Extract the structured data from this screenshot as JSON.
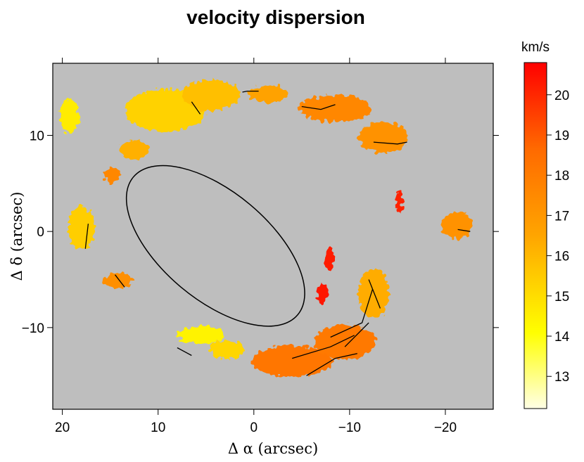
{
  "chart_data": {
    "type": "heatmap",
    "title": "velocity dispersion",
    "xlabel": "Δ α (arcsec)",
    "ylabel": "Δ δ (arcsec)",
    "xlim": [
      21,
      -25
    ],
    "ylim": [
      -18.5,
      17.5
    ],
    "x_ticks": [
      20,
      10,
      0,
      -10,
      -20
    ],
    "x_tick_labels": [
      "20",
      "10",
      "0",
      "−10",
      "−20"
    ],
    "y_ticks": [
      10,
      0,
      -10
    ],
    "y_tick_labels": [
      "10",
      "0",
      "−10"
    ],
    "background_color": "#bebebe",
    "colorbar": {
      "unit_label": "km/s",
      "range": [
        12.2,
        20.8
      ],
      "ticks": [
        13,
        14,
        15,
        16,
        17,
        18,
        19,
        20
      ],
      "tick_labels": [
        "13",
        "14",
        "15",
        "16",
        "17",
        "18",
        "19",
        "20"
      ],
      "colors": [
        "#ffffe6",
        "#ffff00",
        "#ffa500",
        "#ff6a00",
        "#ff0000"
      ]
    },
    "ellipse": {
      "center": [
        4.0,
        -1.5
      ],
      "semi_major": 11.2,
      "semi_minor": 5.6,
      "angle_deg": -40
    },
    "regions": [
      {
        "name": "top-arc-yellow",
        "cx": 9.2,
        "cy": 12.6,
        "rx": 4.2,
        "ry": 2.2,
        "value": 15.3
      },
      {
        "name": "top-arc-mid",
        "cx": 4.5,
        "cy": 14.2,
        "rx": 3.0,
        "ry": 1.6,
        "value": 15.8
      },
      {
        "name": "top-arc-orange",
        "cx": -1.5,
        "cy": 14.3,
        "rx": 2.0,
        "ry": 0.9,
        "value": 16.6
      },
      {
        "name": "top-right-arc",
        "cx": -8.5,
        "cy": 12.8,
        "rx": 3.8,
        "ry": 1.4,
        "value": 17.6
      },
      {
        "name": "top-right-arc-end",
        "cx": -13.5,
        "cy": 9.8,
        "rx": 2.6,
        "ry": 1.6,
        "value": 17.2
      },
      {
        "name": "left-top-clump",
        "cx": 19.3,
        "cy": 12.0,
        "rx": 1.0,
        "ry": 1.8,
        "value": 14.6
      },
      {
        "name": "left-arc-top",
        "cx": 12.5,
        "cy": 8.5,
        "rx": 1.6,
        "ry": 1.0,
        "value": 16.2
      },
      {
        "name": "left-mid-clump",
        "cx": 18.0,
        "cy": 0.4,
        "rx": 1.4,
        "ry": 2.2,
        "value": 15.4
      },
      {
        "name": "left-lower-clump",
        "cx": 14.2,
        "cy": -5.1,
        "rx": 1.5,
        "ry": 0.8,
        "value": 17.3
      },
      {
        "name": "left-patch",
        "cx": 14.8,
        "cy": 5.8,
        "rx": 0.9,
        "ry": 0.8,
        "value": 17.6
      },
      {
        "name": "bottom-left-yellow",
        "cx": 5.5,
        "cy": -10.8,
        "rx": 2.5,
        "ry": 0.9,
        "value": 14.4
      },
      {
        "name": "bottom-left-arc",
        "cx": 2.8,
        "cy": -12.3,
        "rx": 1.8,
        "ry": 1.0,
        "value": 15.2
      },
      {
        "name": "bottom-arc",
        "cx": -4.0,
        "cy": -13.5,
        "rx": 4.2,
        "ry": 1.6,
        "value": 18.2
      },
      {
        "name": "bottom-right-arc-inner",
        "cx": -9.5,
        "cy": -11.5,
        "rx": 3.2,
        "ry": 1.8,
        "value": 18.1
      },
      {
        "name": "bottom-right-arc-upper",
        "cx": -12.5,
        "cy": -6.5,
        "rx": 1.6,
        "ry": 2.6,
        "value": 16.3
      },
      {
        "name": "right-clump",
        "cx": -21.2,
        "cy": 0.6,
        "rx": 1.6,
        "ry": 1.4,
        "value": 17.2
      },
      {
        "name": "inner-red-top",
        "cx": -7.9,
        "cy": -2.9,
        "rx": 0.5,
        "ry": 1.2,
        "value": 20.2
      },
      {
        "name": "inner-red-bottom",
        "cx": -7.2,
        "cy": -6.5,
        "rx": 0.6,
        "ry": 1.0,
        "value": 20.3
      },
      {
        "name": "right-red-spot",
        "cx": -15.2,
        "cy": 3.1,
        "rx": 0.4,
        "ry": 1.2,
        "value": 20.1
      }
    ],
    "contours": [
      [
        [
          17.3,
          0.8
        ],
        [
          17.6,
          -1.8
        ]
      ],
      [
        [
          14.5,
          -4.5
        ],
        [
          13.5,
          -5.8
        ]
      ],
      [
        [
          8.0,
          -12.1
        ],
        [
          6.5,
          -12.9
        ]
      ],
      [
        [
          -12.0,
          -5.0
        ],
        [
          -13.2,
          -8.0
        ]
      ],
      [
        [
          -8.0,
          -11.0
        ],
        [
          -11.3,
          -9.5
        ],
        [
          -12.4,
          -6.0
        ]
      ],
      [
        [
          -9.5,
          -12.0
        ],
        [
          -12.0,
          -9.5
        ]
      ],
      [
        [
          -4.0,
          -13.2
        ],
        [
          -8.0,
          -12.0
        ],
        [
          -10.5,
          -10.8
        ]
      ],
      [
        [
          -5.5,
          -15.0
        ],
        [
          -8.5,
          -13.2
        ],
        [
          -10.8,
          -12.7
        ]
      ],
      [
        [
          -5.0,
          13.0
        ],
        [
          -7.0,
          12.7
        ],
        [
          -8.5,
          13.2
        ]
      ],
      [
        [
          -12.5,
          9.3
        ],
        [
          -15.0,
          9.1
        ],
        [
          -16.0,
          9.3
        ]
      ],
      [
        [
          6.5,
          13.5
        ],
        [
          5.6,
          12.2
        ]
      ],
      [
        [
          -21.3,
          0.2
        ],
        [
          -22.6,
          0.0
        ]
      ],
      [
        [
          1.2,
          14.5
        ],
        [
          0.7,
          14.6
        ],
        [
          -0.5,
          14.6
        ]
      ]
    ]
  }
}
